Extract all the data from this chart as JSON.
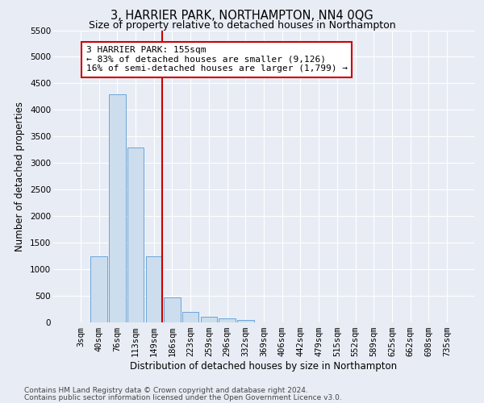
{
  "title": "3, HARRIER PARK, NORTHAMPTON, NN4 0QG",
  "subtitle": "Size of property relative to detached houses in Northampton",
  "xlabel": "Distribution of detached houses by size in Northampton",
  "ylabel": "Number of detached properties",
  "categories": [
    "3sqm",
    "40sqm",
    "76sqm",
    "113sqm",
    "149sqm",
    "186sqm",
    "223sqm",
    "259sqm",
    "296sqm",
    "332sqm",
    "369sqm",
    "406sqm",
    "442sqm",
    "479sqm",
    "515sqm",
    "552sqm",
    "589sqm",
    "625sqm",
    "662sqm",
    "698sqm",
    "735sqm"
  ],
  "values": [
    0,
    1250,
    4300,
    3300,
    1250,
    475,
    200,
    100,
    75,
    50,
    0,
    0,
    0,
    0,
    0,
    0,
    0,
    0,
    0,
    0,
    0
  ],
  "bar_color": "#ccdded",
  "bar_edge_color": "#5b9bd5",
  "vline_color": "#cc0000",
  "annotation_text": "3 HARRIER PARK: 155sqm\n← 83% of detached houses are smaller (9,126)\n16% of semi-detached houses are larger (1,799) →",
  "annotation_box_color": "#ffffff",
  "annotation_box_edge": "#cc0000",
  "ylim": [
    0,
    5500
  ],
  "yticks": [
    0,
    500,
    1000,
    1500,
    2000,
    2500,
    3000,
    3500,
    4000,
    4500,
    5000,
    5500
  ],
  "footer1": "Contains HM Land Registry data © Crown copyright and database right 2024.",
  "footer2": "Contains public sector information licensed under the Open Government Licence v3.0.",
  "background_color": "#e8edf5",
  "plot_bg_color": "#e8edf5",
  "grid_color": "#ffffff",
  "title_fontsize": 10.5,
  "subtitle_fontsize": 9,
  "axis_label_fontsize": 8.5,
  "tick_fontsize": 7.5,
  "annotation_fontsize": 8,
  "footer_fontsize": 6.5
}
